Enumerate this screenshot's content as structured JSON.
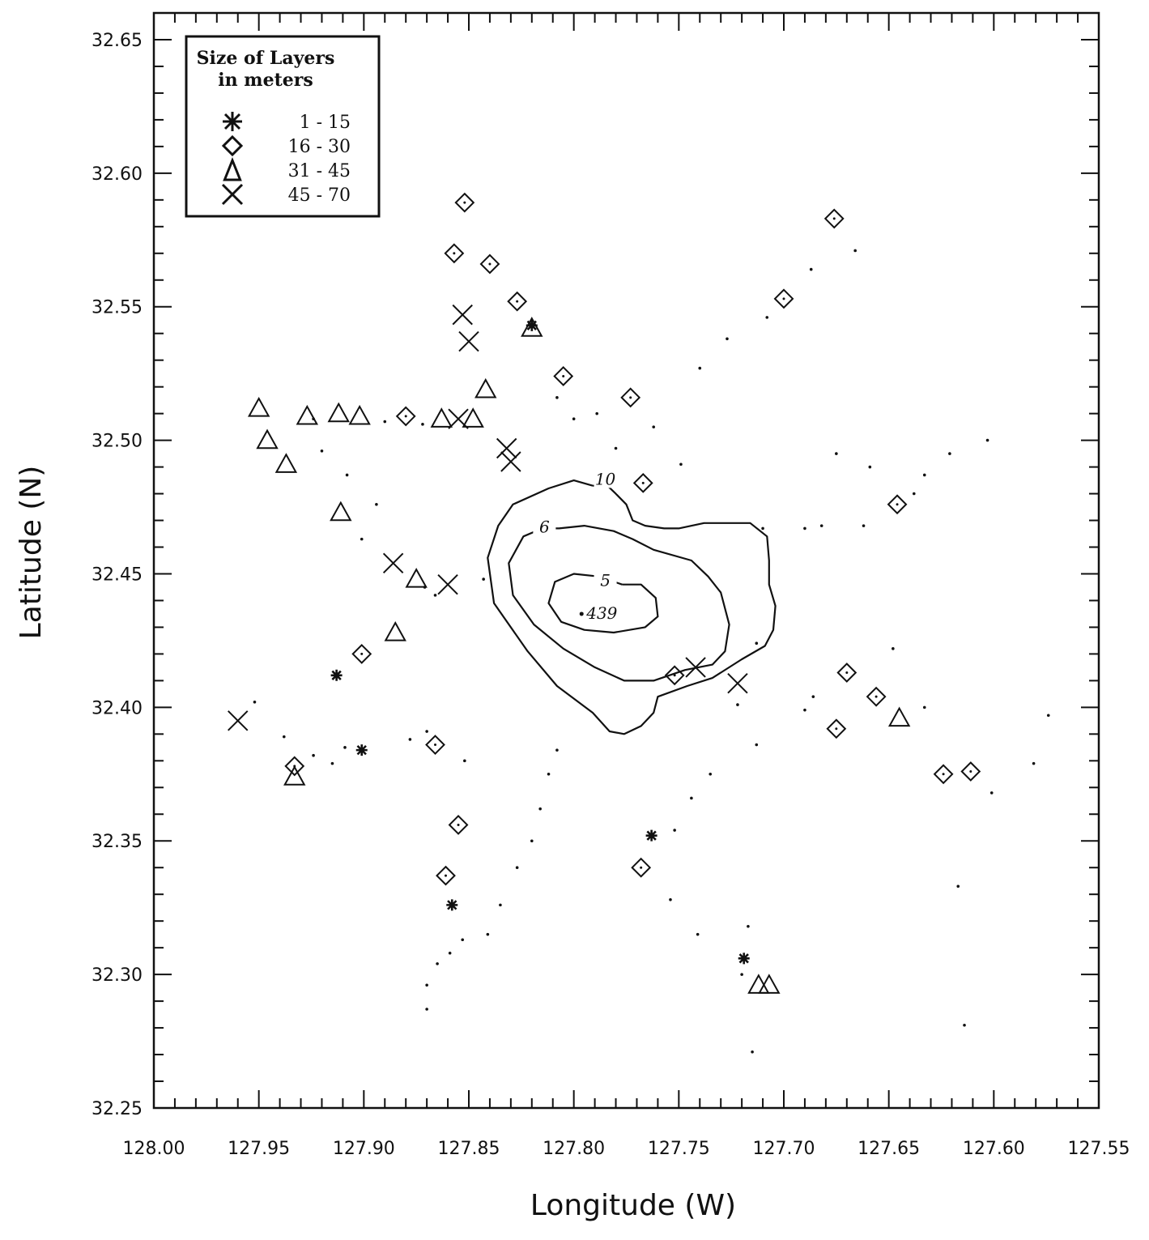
{
  "chart_data": {
    "type": "scatter",
    "xlabel": "Longitude (W)",
    "ylabel": "Latitude (N)",
    "xlim": [
      128.0,
      127.55
    ],
    "ylim": [
      32.25,
      32.66
    ],
    "x_reversed": true,
    "x_ticks": [
      "128.00",
      "127.95",
      "127.90",
      "127.85",
      "127.80",
      "127.75",
      "127.70",
      "127.65",
      "127.60",
      "127.55"
    ],
    "y_ticks": [
      "32.25",
      "32.30",
      "32.35",
      "32.40",
      "32.45",
      "32.50",
      "32.55",
      "32.60",
      "32.65"
    ],
    "grid": false,
    "legend": {
      "placement": "top-left",
      "title_lines": [
        "Size of Layers",
        "in meters"
      ],
      "entries": [
        {
          "symbol": "asterisk",
          "label": "1 - 15"
        },
        {
          "symbol": "diamond",
          "label": "16 - 30"
        },
        {
          "symbol": "triangle",
          "label": "31 - 45"
        },
        {
          "symbol": "x",
          "label": "45 - 70"
        }
      ]
    },
    "series": [
      {
        "symbol": "asterisk",
        "points": [
          [
            127.82,
            32.543
          ],
          [
            127.913,
            32.412
          ],
          [
            127.901,
            32.384
          ],
          [
            127.858,
            32.326
          ],
          [
            127.763,
            32.352
          ],
          [
            127.719,
            32.306
          ]
        ]
      },
      {
        "symbol": "diamond",
        "points": [
          [
            127.852,
            32.589
          ],
          [
            127.857,
            32.57
          ],
          [
            127.84,
            32.566
          ],
          [
            127.827,
            32.552
          ],
          [
            127.805,
            32.524
          ],
          [
            127.773,
            32.516
          ],
          [
            127.88,
            32.509
          ],
          [
            127.767,
            32.484
          ],
          [
            127.7,
            32.553
          ],
          [
            127.676,
            32.583
          ],
          [
            127.646,
            32.476
          ],
          [
            127.901,
            32.42
          ],
          [
            127.866,
            32.386
          ],
          [
            127.752,
            32.412
          ],
          [
            127.67,
            32.413
          ],
          [
            127.656,
            32.404
          ],
          [
            127.675,
            32.392
          ],
          [
            127.624,
            32.375
          ],
          [
            127.611,
            32.376
          ],
          [
            127.933,
            32.378
          ],
          [
            127.855,
            32.356
          ],
          [
            127.861,
            32.337
          ],
          [
            127.768,
            32.34
          ]
        ]
      },
      {
        "symbol": "triangle",
        "points": [
          [
            127.927,
            32.509
          ],
          [
            127.95,
            32.512
          ],
          [
            127.946,
            32.5
          ],
          [
            127.937,
            32.491
          ],
          [
            127.912,
            32.51
          ],
          [
            127.902,
            32.509
          ],
          [
            127.863,
            32.508
          ],
          [
            127.848,
            32.508
          ],
          [
            127.842,
            32.519
          ],
          [
            127.82,
            32.542
          ],
          [
            127.911,
            32.473
          ],
          [
            127.875,
            32.448
          ],
          [
            127.885,
            32.428
          ],
          [
            127.933,
            32.374
          ],
          [
            127.645,
            32.396
          ],
          [
            127.712,
            32.296
          ],
          [
            127.707,
            32.296
          ]
        ]
      },
      {
        "symbol": "x",
        "points": [
          [
            127.853,
            32.547
          ],
          [
            127.85,
            32.537
          ],
          [
            127.855,
            32.508
          ],
          [
            127.832,
            32.497
          ],
          [
            127.83,
            32.492
          ],
          [
            127.886,
            32.454
          ],
          [
            127.86,
            32.446
          ],
          [
            127.96,
            32.395
          ],
          [
            127.742,
            32.415
          ],
          [
            127.722,
            32.409
          ]
        ]
      },
      {
        "symbol": "dot",
        "points": [
          [
            127.952,
            32.402
          ],
          [
            127.938,
            32.389
          ],
          [
            127.924,
            32.382
          ],
          [
            127.915,
            32.379
          ],
          [
            127.878,
            32.388
          ],
          [
            127.87,
            32.391
          ],
          [
            127.871,
            32.445
          ],
          [
            127.866,
            32.442
          ],
          [
            127.843,
            32.448
          ],
          [
            127.92,
            32.496
          ],
          [
            127.908,
            32.487
          ],
          [
            127.894,
            32.476
          ],
          [
            127.901,
            32.463
          ],
          [
            127.924,
            32.508
          ],
          [
            127.89,
            32.507
          ],
          [
            127.872,
            32.506
          ],
          [
            127.808,
            32.516
          ],
          [
            127.789,
            32.51
          ],
          [
            127.8,
            32.508
          ],
          [
            127.78,
            32.497
          ],
          [
            127.762,
            32.505
          ],
          [
            127.749,
            32.491
          ],
          [
            127.74,
            32.527
          ],
          [
            127.727,
            32.538
          ],
          [
            127.708,
            32.546
          ],
          [
            127.687,
            32.564
          ],
          [
            127.666,
            32.571
          ],
          [
            127.69,
            32.467
          ],
          [
            127.71,
            32.467
          ],
          [
            127.675,
            32.495
          ],
          [
            127.659,
            32.49
          ],
          [
            127.633,
            32.487
          ],
          [
            127.621,
            32.495
          ],
          [
            127.603,
            32.5
          ],
          [
            127.682,
            32.468
          ],
          [
            127.662,
            32.468
          ],
          [
            127.638,
            32.48
          ],
          [
            127.713,
            32.424
          ],
          [
            127.69,
            32.399
          ],
          [
            127.686,
            32.404
          ],
          [
            127.648,
            32.422
          ],
          [
            127.633,
            32.4
          ],
          [
            127.601,
            32.368
          ],
          [
            127.581,
            32.379
          ],
          [
            127.722,
            32.401
          ],
          [
            127.713,
            32.386
          ],
          [
            127.735,
            32.375
          ],
          [
            127.744,
            32.366
          ],
          [
            127.752,
            32.354
          ],
          [
            127.754,
            32.328
          ],
          [
            127.741,
            32.315
          ],
          [
            127.72,
            32.3
          ],
          [
            127.717,
            32.318
          ],
          [
            127.715,
            32.271
          ],
          [
            127.614,
            32.281
          ],
          [
            127.574,
            32.397
          ],
          [
            127.617,
            32.333
          ],
          [
            127.808,
            32.384
          ],
          [
            127.812,
            32.375
          ],
          [
            127.816,
            32.362
          ],
          [
            127.82,
            32.35
          ],
          [
            127.827,
            32.34
          ],
          [
            127.835,
            32.326
          ],
          [
            127.841,
            32.315
          ],
          [
            127.853,
            32.313
          ],
          [
            127.859,
            32.308
          ],
          [
            127.865,
            32.304
          ],
          [
            127.87,
            32.296
          ],
          [
            127.87,
            32.287
          ],
          [
            127.909,
            32.385
          ],
          [
            127.852,
            32.38
          ]
        ]
      }
    ],
    "contours": [
      {
        "label": "10",
        "points": [
          [
            127.791,
            32.483
          ],
          [
            127.784,
            32.483
          ],
          [
            127.78,
            32.48
          ],
          [
            127.775,
            32.476
          ],
          [
            127.772,
            32.47
          ],
          [
            127.766,
            32.468
          ],
          [
            127.757,
            32.467
          ],
          [
            127.75,
            32.467
          ],
          [
            127.738,
            32.469
          ],
          [
            127.732,
            32.469
          ],
          [
            127.716,
            32.469
          ],
          [
            127.708,
            32.464
          ],
          [
            127.707,
            32.455
          ],
          [
            127.707,
            32.446
          ],
          [
            127.704,
            32.438
          ],
          [
            127.705,
            32.429
          ],
          [
            127.709,
            32.423
          ],
          [
            127.72,
            32.418
          ],
          [
            127.734,
            32.411
          ],
          [
            127.746,
            32.408
          ],
          [
            127.76,
            32.404
          ],
          [
            127.762,
            32.398
          ],
          [
            127.768,
            32.393
          ],
          [
            127.776,
            32.39
          ],
          [
            127.783,
            32.391
          ],
          [
            127.791,
            32.398
          ],
          [
            127.808,
            32.408
          ],
          [
            127.822,
            32.421
          ],
          [
            127.838,
            32.439
          ],
          [
            127.841,
            32.456
          ],
          [
            127.836,
            32.468
          ],
          [
            127.829,
            32.476
          ],
          [
            127.812,
            32.482
          ],
          [
            127.8,
            32.485
          ],
          [
            127.791,
            32.483
          ]
        ]
      },
      {
        "label": "6",
        "points": [
          [
            127.815,
            32.467
          ],
          [
            127.807,
            32.467
          ],
          [
            127.795,
            32.468
          ],
          [
            127.781,
            32.466
          ],
          [
            127.772,
            32.463
          ],
          [
            127.762,
            32.459
          ],
          [
            127.744,
            32.455
          ],
          [
            127.736,
            32.449
          ],
          [
            127.73,
            32.443
          ],
          [
            127.726,
            32.431
          ],
          [
            127.728,
            32.421
          ],
          [
            127.734,
            32.416
          ],
          [
            127.747,
            32.414
          ],
          [
            127.762,
            32.41
          ],
          [
            127.776,
            32.41
          ],
          [
            127.79,
            32.415
          ],
          [
            127.805,
            32.422
          ],
          [
            127.819,
            32.431
          ],
          [
            127.829,
            32.442
          ],
          [
            127.831,
            32.454
          ],
          [
            127.824,
            32.464
          ],
          [
            127.815,
            32.467
          ]
        ]
      },
      {
        "label": "5",
        "points": [
          [
            127.777,
            32.446
          ],
          [
            127.768,
            32.446
          ],
          [
            127.761,
            32.441
          ],
          [
            127.76,
            32.434
          ],
          [
            127.766,
            32.43
          ],
          [
            127.781,
            32.428
          ],
          [
            127.795,
            32.429
          ],
          [
            127.806,
            32.432
          ],
          [
            127.812,
            32.439
          ],
          [
            127.809,
            32.447
          ],
          [
            127.8,
            32.45
          ],
          [
            127.788,
            32.449
          ],
          [
            127.777,
            32.446
          ]
        ]
      }
    ],
    "annotations": [
      {
        "text": "439",
        "x": 127.794,
        "y": 32.435
      }
    ]
  }
}
